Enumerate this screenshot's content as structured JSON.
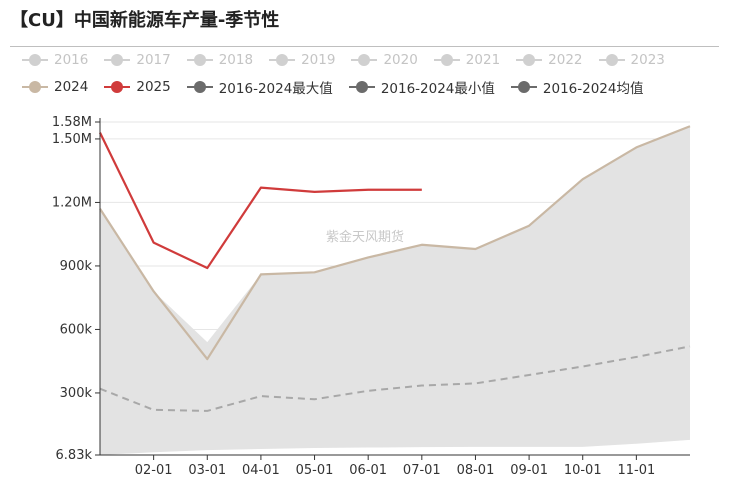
{
  "title": "【CU】中国新能源车产量-季节性",
  "watermark": "紫金天风期货",
  "legend": [
    {
      "label": "2016",
      "color": "#d0d0d0",
      "dim": true,
      "row": 1
    },
    {
      "label": "2017",
      "color": "#d0d0d0",
      "dim": true,
      "row": 1
    },
    {
      "label": "2018",
      "color": "#d0d0d0",
      "dim": true,
      "row": 1
    },
    {
      "label": "2019",
      "color": "#d0d0d0",
      "dim": true,
      "row": 1
    },
    {
      "label": "2020",
      "color": "#d0d0d0",
      "dim": true,
      "row": 1
    },
    {
      "label": "2021",
      "color": "#d0d0d0",
      "dim": true,
      "row": 1
    },
    {
      "label": "2022",
      "color": "#d0d0d0",
      "dim": true,
      "row": 1
    },
    {
      "label": "2023",
      "color": "#d0d0d0",
      "dim": true,
      "row": 1
    },
    {
      "label": "2024",
      "color": "#c9b8a4",
      "dim": false,
      "row": 2
    },
    {
      "label": "2025",
      "color": "#d03b3b",
      "dim": false,
      "row": 2
    },
    {
      "label": "2016-2024最大值",
      "color": "#6b6b6b",
      "dim": false,
      "row": 2
    },
    {
      "label": "2016-2024最小值",
      "color": "#6b6b6b",
      "dim": false,
      "row": 2
    },
    {
      "label": "2016-2024均值",
      "color": "#6b6b6b",
      "dim": false,
      "row": 2
    }
  ],
  "chart_data": {
    "type": "line",
    "title": "【CU】中国新能源车产量-季节性",
    "x_labels": [
      "02-01",
      "03-01",
      "04-01",
      "05-01",
      "06-01",
      "07-01",
      "08-01",
      "09-01",
      "10-01",
      "11-01"
    ],
    "y_ticks": [
      {
        "value": 6830,
        "label": "6.83k"
      },
      {
        "value": 300000,
        "label": "300k"
      },
      {
        "value": 600000,
        "label": "600k"
      },
      {
        "value": 900000,
        "label": "900k"
      },
      {
        "value": 1200000,
        "label": "1.20M"
      },
      {
        "value": 1500000,
        "label": "1.50M"
      },
      {
        "value": 1580000,
        "label": "1.58M"
      }
    ],
    "ylim": [
      6830,
      1580000
    ],
    "x_range": [
      0,
      11
    ],
    "grid": true,
    "legend_position": "top",
    "series": [
      {
        "name": "2024",
        "color": "#c9b8a4",
        "style": "solid",
        "x": [
          0,
          1,
          2,
          3,
          4,
          5,
          6,
          7,
          8,
          9,
          10,
          11
        ],
        "values": [
          1170000,
          780000,
          460000,
          860000,
          870000,
          940000,
          1000000,
          980000,
          1090000,
          1310000,
          1460000,
          1560000
        ]
      },
      {
        "name": "2025",
        "color": "#d03b3b",
        "style": "solid",
        "x": [
          0,
          1,
          2,
          3,
          4,
          5,
          6
        ],
        "values": [
          1530000,
          1010000,
          890000,
          1270000,
          1250000,
          1260000,
          1260000
        ]
      },
      {
        "name": "2016-2024最大值",
        "color": "#e3e3e3",
        "style": "area-top",
        "x": [
          0,
          1,
          2,
          3,
          4,
          5,
          6,
          7,
          8,
          9,
          10,
          11
        ],
        "values": [
          1170000,
          780000,
          540000,
          860000,
          870000,
          940000,
          1000000,
          980000,
          1090000,
          1310000,
          1460000,
          1560000
        ]
      },
      {
        "name": "2016-2024最小值",
        "color": "#ffffff",
        "style": "area-bottom",
        "x": [
          0,
          1,
          2,
          3,
          4,
          5,
          6,
          7,
          8,
          9,
          10,
          11
        ],
        "values": [
          6830,
          20000,
          30000,
          35000,
          40000,
          42000,
          44000,
          45000,
          45000,
          45000,
          60000,
          78000
        ]
      },
      {
        "name": "2016-2024均值",
        "color": "#a8a8a8",
        "style": "dashed",
        "x": [
          0,
          1,
          2,
          3,
          4,
          5,
          6,
          7,
          8,
          9,
          10,
          11
        ],
        "values": [
          320000,
          220000,
          215000,
          285000,
          270000,
          310000,
          335000,
          345000,
          385000,
          425000,
          470000,
          520000
        ]
      }
    ]
  }
}
